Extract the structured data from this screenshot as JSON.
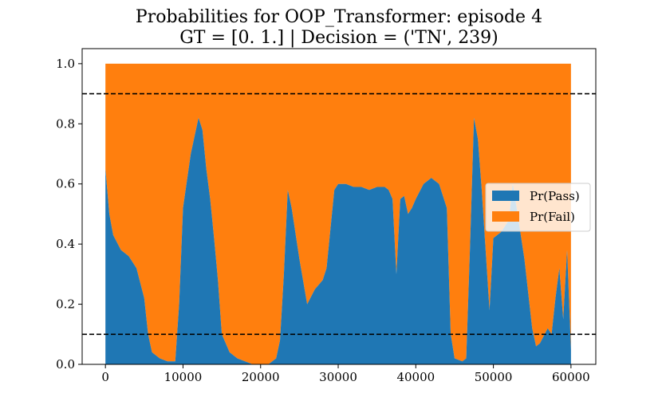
{
  "chart_data": {
    "type": "area",
    "title": "Probabilities for OOP_Transformer: episode 4",
    "subtitle": "GT = [0. 1.] | Decision = ('TN', 239)",
    "xlabel": "",
    "ylabel": "",
    "xlim": [
      -3000,
      63200
    ],
    "ylim": [
      0.0,
      1.05
    ],
    "x_ticks": [
      "0",
      "10000",
      "20000",
      "30000",
      "40000",
      "50000",
      "60000"
    ],
    "y_ticks": [
      "0.0",
      "0.2",
      "0.4",
      "0.6",
      "0.8",
      "1.0"
    ],
    "grid": false,
    "legend_position": "center-right",
    "thresholds": [
      0.9,
      0.1
    ],
    "series": [
      {
        "name": "Pr(Pass)",
        "color": "#1f77b4",
        "x": [
          0,
          500,
          1000,
          2000,
          3000,
          4000,
          5000,
          5500,
          6000,
          7000,
          8000,
          9000,
          9500,
          10000,
          11000,
          11500,
          12000,
          12500,
          13000,
          13500,
          14000,
          14500,
          15000,
          16000,
          17000,
          18000,
          19000,
          20000,
          21000,
          22000,
          22500,
          23000,
          23500,
          24000,
          25000,
          26000,
          27000,
          28000,
          28500,
          29000,
          29500,
          30000,
          31000,
          32000,
          33000,
          34000,
          35000,
          36000,
          36500,
          37000,
          37500,
          38000,
          38500,
          39000,
          39500,
          40000,
          41000,
          42000,
          43000,
          44000,
          44500,
          45000,
          46000,
          46500,
          47000,
          47500,
          48000,
          48500,
          49000,
          49500,
          50000,
          51000,
          52000,
          52500,
          53000,
          54000,
          55000,
          55500,
          56000,
          57000,
          57500,
          58000,
          58500,
          59000,
          59500,
          60000
        ],
        "values": [
          0.65,
          0.5,
          0.43,
          0.38,
          0.36,
          0.32,
          0.22,
          0.1,
          0.04,
          0.02,
          0.01,
          0.01,
          0.2,
          0.52,
          0.7,
          0.76,
          0.82,
          0.78,
          0.65,
          0.55,
          0.42,
          0.28,
          0.1,
          0.04,
          0.02,
          0.01,
          0.0,
          0.0,
          0.0,
          0.02,
          0.08,
          0.3,
          0.58,
          0.52,
          0.35,
          0.2,
          0.25,
          0.28,
          0.32,
          0.45,
          0.58,
          0.6,
          0.6,
          0.59,
          0.59,
          0.58,
          0.59,
          0.59,
          0.58,
          0.55,
          0.3,
          0.55,
          0.56,
          0.5,
          0.52,
          0.55,
          0.6,
          0.62,
          0.6,
          0.52,
          0.1,
          0.02,
          0.01,
          0.02,
          0.4,
          0.82,
          0.75,
          0.58,
          0.38,
          0.18,
          0.42,
          0.44,
          0.48,
          0.6,
          0.52,
          0.35,
          0.12,
          0.06,
          0.07,
          0.12,
          0.1,
          0.22,
          0.32,
          0.15,
          0.38,
          0.05
        ]
      },
      {
        "name": "Pr(Fail)",
        "color": "#ff7f0e",
        "note_stacked_total": 1.0
      }
    ]
  }
}
